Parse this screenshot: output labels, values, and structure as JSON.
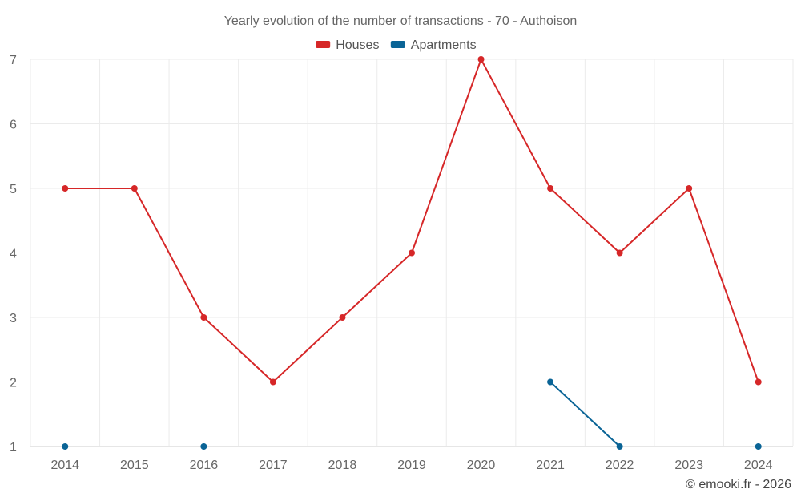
{
  "chart_data": {
    "type": "line",
    "title": "Yearly evolution of the number of transactions - 70 - Authoison",
    "categories": [
      "2014",
      "2015",
      "2016",
      "2017",
      "2018",
      "2019",
      "2020",
      "2021",
      "2022",
      "2023",
      "2024"
    ],
    "series": [
      {
        "name": "Houses",
        "color": "#d62728",
        "values": [
          5,
          5,
          3,
          2,
          3,
          4,
          7,
          5,
          4,
          5,
          2
        ]
      },
      {
        "name": "Apartments",
        "color": "#0a6496",
        "values": [
          1,
          null,
          1,
          null,
          null,
          null,
          null,
          2,
          1,
          null,
          1
        ]
      }
    ],
    "ylim": [
      1,
      7
    ],
    "yticks": [
      1,
      2,
      3,
      4,
      5,
      6,
      7
    ],
    "xlabel": "",
    "ylabel": "",
    "legend": "top-center",
    "grid": true
  },
  "credit": "© emooki.fr - 2026"
}
